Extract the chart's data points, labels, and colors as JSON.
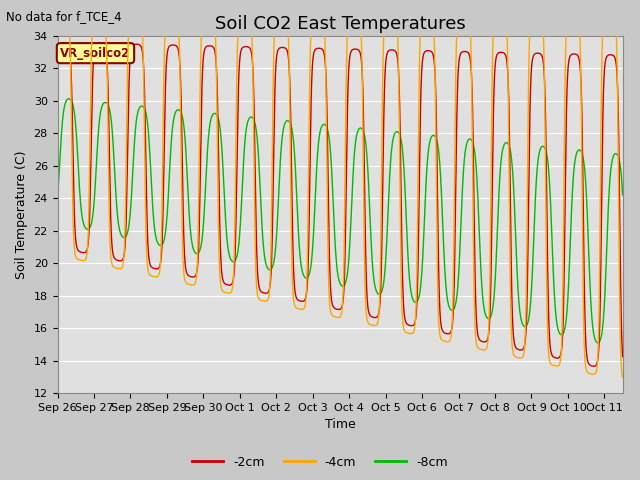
{
  "title": "Soil CO2 East Temperatures",
  "no_data_text": "No data for f_TCE_4",
  "legend_label": "VR_soilco2",
  "xlabel": "Time",
  "ylabel": "Soil Temperature (C)",
  "ylim": [
    12,
    34
  ],
  "yticks": [
    12,
    14,
    16,
    18,
    20,
    22,
    24,
    26,
    28,
    30,
    32,
    34
  ],
  "xtick_labels": [
    "Sep 26",
    "Sep 27",
    "Sep 28",
    "Sep 29",
    "Sep 30",
    "Oct 1",
    "Oct 2",
    "Oct 3",
    "Oct 4",
    "Oct 5",
    "Oct 6",
    "Oct 7",
    "Oct 8",
    "Oct 9",
    "Oct 10",
    "Oct 11"
  ],
  "line_colors": {
    "2cm": "#cc0000",
    "4cm": "#ffa500",
    "8cm": "#00bb00"
  },
  "legend_entries": [
    "-2cm",
    "-4cm",
    "-8cm"
  ],
  "fig_bg_color": "#c8c8c8",
  "plot_bg_color": "#e0e0e0",
  "grid_color": "white",
  "legend_box_bg": "#ffff99",
  "legend_box_edge": "#8b0000",
  "title_fontsize": 13,
  "axis_label_fontsize": 9,
  "tick_fontsize": 8
}
